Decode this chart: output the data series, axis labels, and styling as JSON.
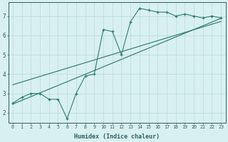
{
  "scatter_x": [
    0,
    1,
    2,
    3,
    4,
    5,
    6,
    7,
    8,
    9,
    10,
    11,
    12,
    13,
    14,
    15,
    16,
    17,
    18,
    19,
    20,
    21,
    22,
    23
  ],
  "scatter_y": [
    2.5,
    2.8,
    3.0,
    3.0,
    2.7,
    2.7,
    1.7,
    3.0,
    3.9,
    4.0,
    6.3,
    6.2,
    5.0,
    6.7,
    7.4,
    7.3,
    7.2,
    7.2,
    7.0,
    7.1,
    7.0,
    6.9,
    7.0,
    6.9
  ],
  "line_color": "#2e7d72",
  "bg_color": "#d9f0f0",
  "xlabel": "Humidex (Indice chaleur)",
  "xlim": [
    -0.5,
    23.5
  ],
  "ylim": [
    1.5,
    7.7
  ],
  "xtick_labels": [
    "0",
    "1",
    "2",
    "3",
    "4",
    "5",
    "6",
    "7",
    "8",
    "9",
    "10",
    "11",
    "12",
    "13",
    "14",
    "15",
    "16",
    "17",
    "18",
    "19",
    "20",
    "21",
    "22",
    "23"
  ],
  "ytick_labels": [
    "2",
    "3",
    "4",
    "5",
    "6",
    "7"
  ],
  "ytick_values": [
    2,
    3,
    4,
    5,
    6,
    7
  ],
  "grid_color": "#b8dada",
  "font_color": "#2e6060",
  "line1": [
    2.45,
    6.88
  ],
  "line2": [
    3.45,
    6.72
  ]
}
